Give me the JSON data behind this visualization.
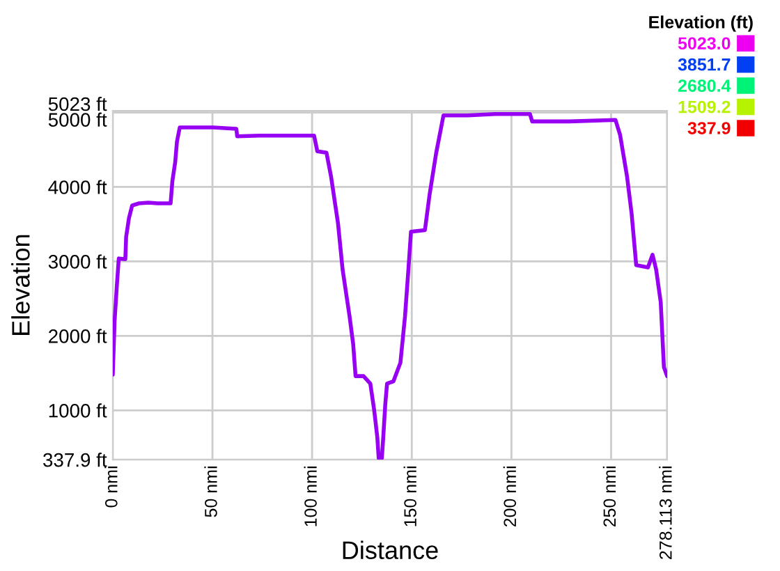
{
  "chart_data": {
    "type": "line",
    "xlabel": "Distance",
    "ylabel": "Elevation",
    "clabel": "Elevation (ft)",
    "xlim": [
      0,
      278.113
    ],
    "ylim": [
      337.9,
      5023
    ],
    "xticks": [
      {
        "value": 0,
        "label": "0 nmi"
      },
      {
        "value": 50,
        "label": "50 nmi"
      },
      {
        "value": 100,
        "label": "100 nmi"
      },
      {
        "value": 150,
        "label": "150 nmi"
      },
      {
        "value": 200,
        "label": "200 nmi"
      },
      {
        "value": 250,
        "label": "250 nmi"
      },
      {
        "value": 278.113,
        "label": "278.113 nmi"
      }
    ],
    "yticks": [
      {
        "value": 337.9,
        "label": "337.9 ft"
      },
      {
        "value": 1000,
        "label": "1000 ft"
      },
      {
        "value": 2000,
        "label": "2000 ft"
      },
      {
        "value": 3000,
        "label": "3000 ft"
      },
      {
        "value": 4000,
        "label": "4000 ft"
      },
      {
        "value": 5000,
        "label": "5000 ft"
      },
      {
        "value": 5023,
        "label": "5023 ft"
      }
    ],
    "clim": [
      337.9,
      5023
    ],
    "cticks": [
      {
        "value": 5023.0,
        "label": "5023.0"
      },
      {
        "value": 3851.7,
        "label": "3851.7"
      },
      {
        "value": 2680.4,
        "label": "2680.4"
      },
      {
        "value": 1509.2,
        "label": "1509.2"
      },
      {
        "value": 337.9,
        "label": "337.9"
      }
    ],
    "grid": true,
    "color": "#9700f2",
    "x": [
      0,
      0.9,
      2.1,
      3.0,
      6.3,
      6.7,
      8.1,
      9.7,
      13.2,
      17.9,
      22.5,
      29,
      29.9,
      31.3,
      32.2,
      33.6,
      41,
      50.3,
      62,
      62.4,
      73.5,
      92,
      101,
      102.6,
      107.2,
      109.5,
      113,
      115.3,
      118.8,
      120.6,
      121.8,
      125.8,
      129.2,
      131.1,
      132.7,
      133.4,
      135,
      135.7,
      136.7,
      137.6,
      140.8,
      144.3,
      146.6,
      148.3,
      149.6,
      156.6,
      158.9,
      162.2,
      165.9,
      178,
      191.9,
      209.3,
      210.4,
      229,
      252.2,
      254.5,
      258,
      260.3,
      262.6,
      268.5,
      270.8,
      272.6,
      274.9,
      276.5,
      278.1
    ],
    "values": [
      1480,
      2200,
      2700,
      3040,
      3030,
      3330,
      3580,
      3750,
      3780,
      3790,
      3780,
      3780,
      4080,
      4330,
      4610,
      4800,
      4800,
      4800,
      4780,
      4680,
      4690,
      4690,
      4690,
      4480,
      4460,
      4140,
      3510,
      2890,
      2260,
      1890,
      1460,
      1460,
      1360,
      1010,
      640,
      360,
      360,
      640,
      1080,
      1360,
      1390,
      1640,
      2260,
      2890,
      3400,
      3420,
      3890,
      4450,
      4960,
      4960,
      4980,
      4980,
      4880,
      4880,
      4900,
      4700,
      4140,
      3640,
      2950,
      2920,
      3090,
      2890,
      2450,
      1580,
      1460
    ]
  }
}
